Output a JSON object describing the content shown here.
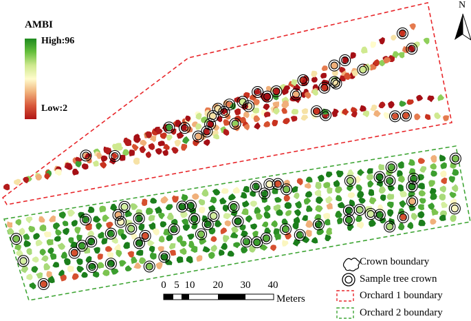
{
  "legend": {
    "ambi_title": "AMBI",
    "high_label": "High:96",
    "low_label": "Low:2",
    "ramp_colors": [
      "#1e8a1e",
      "#66bf3c",
      "#cfe98f",
      "#fffccc",
      "#f0b07a",
      "#d8583a",
      "#b01515"
    ],
    "crown_boundary": "Crown boundary",
    "sample_tree": "Sample tree crown",
    "orchard1": "Orchard 1 boundary",
    "orchard2": "Orchard 2 boundary"
  },
  "north_arrow": {
    "label": "N"
  },
  "scale_bar": {
    "ticks": [
      "0",
      "5",
      "10",
      "20",
      "30",
      "40"
    ],
    "tick_values": [
      0,
      5,
      10,
      20,
      30,
      40
    ],
    "unit": "Meters"
  },
  "colors": {
    "orchard1_boundary": "#e8262a",
    "orchard2_boundary": "#3fa535"
  }
}
